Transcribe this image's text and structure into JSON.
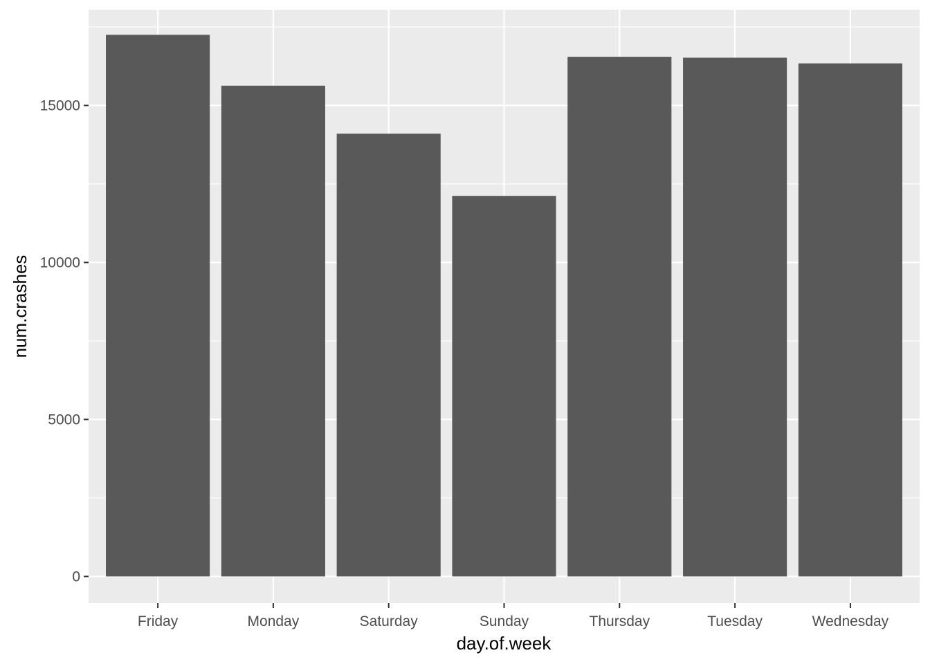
{
  "colors": {
    "panel_background": "#EBEBEB",
    "grid_major": "#FFFFFF",
    "bar_fill": "#595959",
    "tick_text": "#4D4D4D",
    "axis_text": "#000000"
  },
  "chart_data": {
    "type": "bar",
    "xlabel": "day.of.week",
    "ylabel": "num.crashes",
    "categories": [
      "Friday",
      "Monday",
      "Saturday",
      "Sunday",
      "Thursday",
      "Tuesday",
      "Wednesday"
    ],
    "values": [
      17250,
      15630,
      14100,
      12120,
      16550,
      16520,
      16340
    ],
    "ylim": [
      -850,
      18050
    ],
    "yticks": [
      0,
      5000,
      10000,
      15000
    ],
    "ytick_labels": [
      "0",
      "5000",
      "10000",
      "15000"
    ],
    "grid": true,
    "legend": "none"
  }
}
